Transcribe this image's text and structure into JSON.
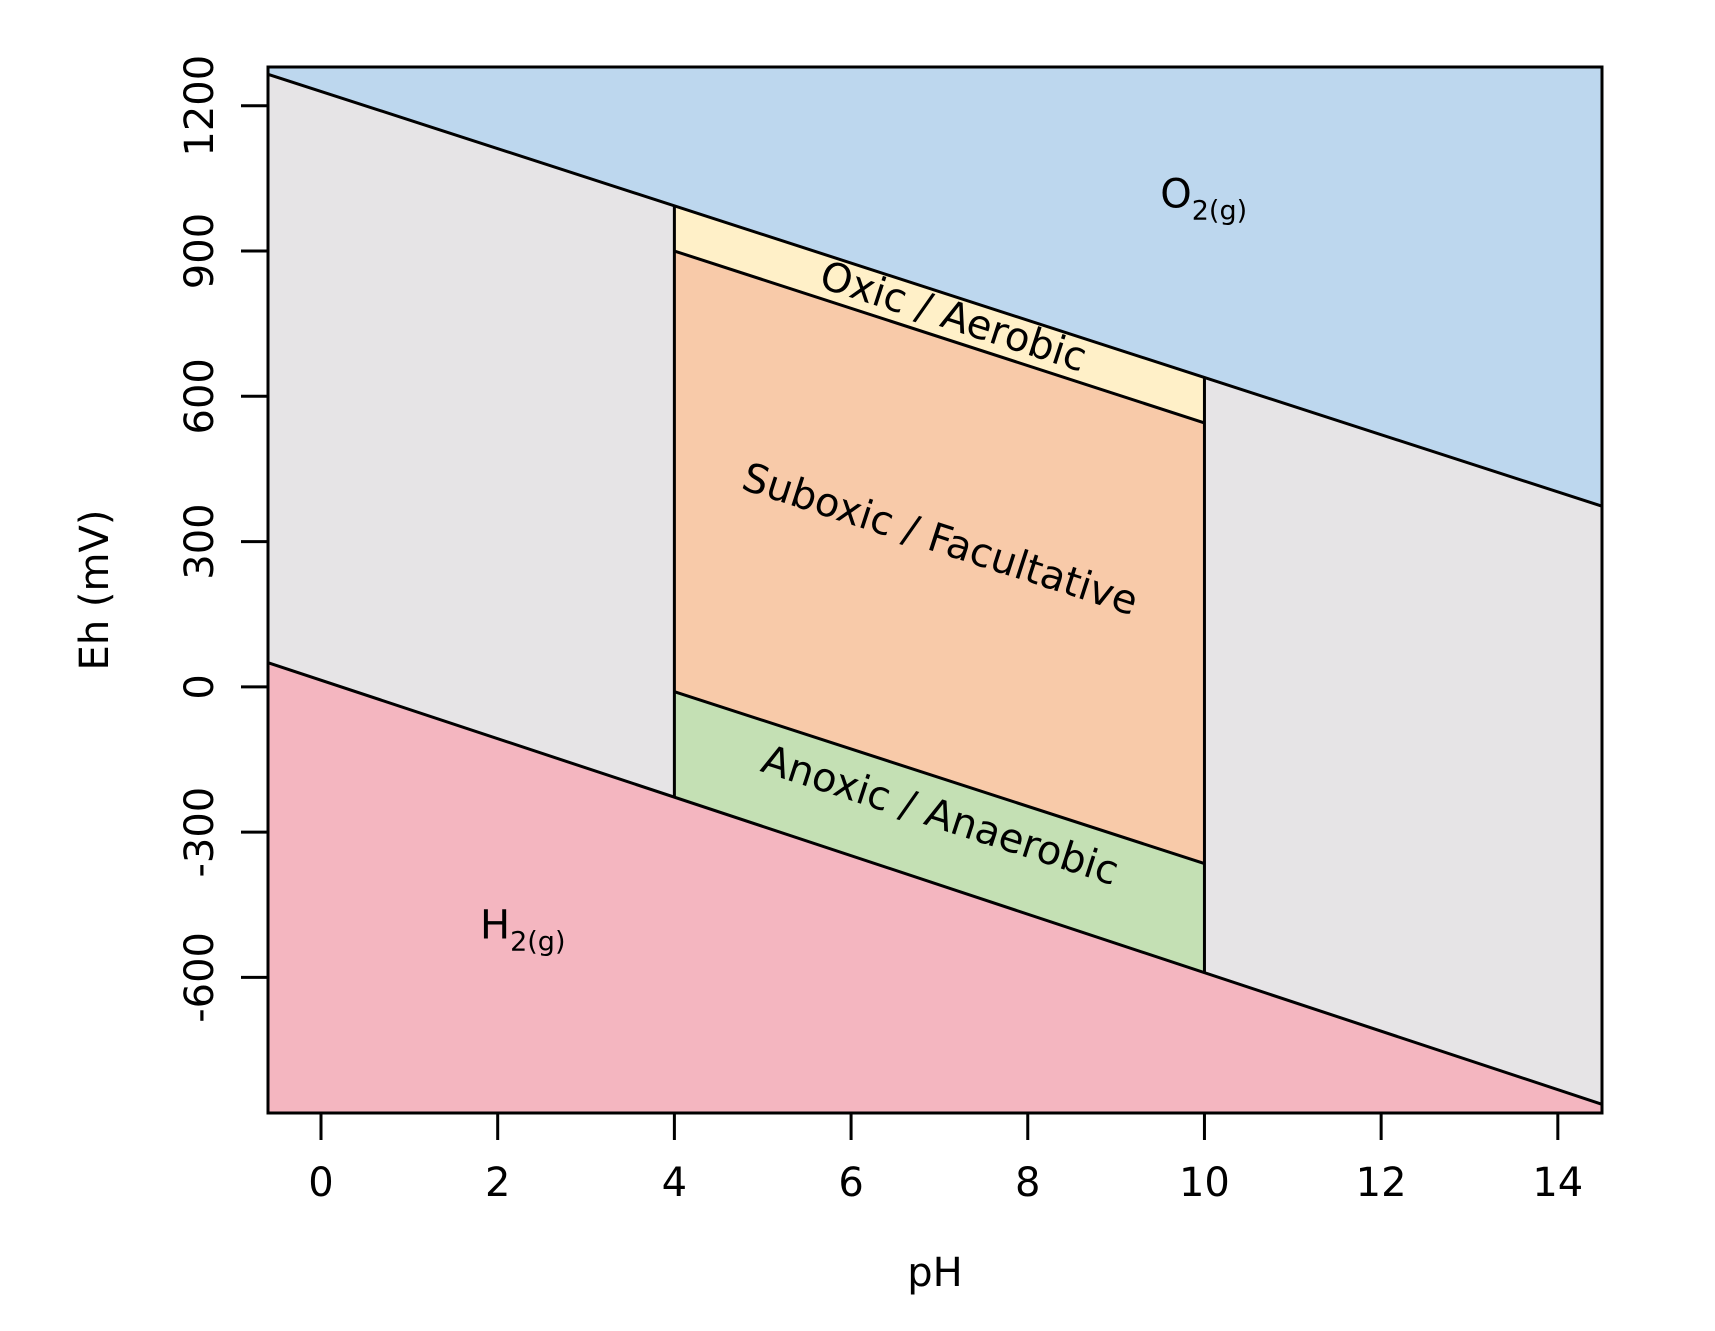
{
  "chart_data": {
    "type": "area",
    "title": "",
    "xlabel": "pH",
    "ylabel": "Eh (mV)",
    "xlim": [
      -0.6,
      14.5
    ],
    "ylim": [
      -880,
      1280
    ],
    "x_ticks": [
      {
        "value": 0,
        "label": "0"
      },
      {
        "value": 2,
        "label": "2"
      },
      {
        "value": 4,
        "label": "4"
      },
      {
        "value": 6,
        "label": "6"
      },
      {
        "value": 8,
        "label": "8"
      },
      {
        "value": 10,
        "label": "10"
      },
      {
        "value": 12,
        "label": "12"
      },
      {
        "value": 14,
        "label": "14"
      }
    ],
    "y_ticks": [
      {
        "value": -600,
        "label": "-600"
      },
      {
        "value": -300,
        "label": "-300"
      },
      {
        "value": 0,
        "label": "0"
      },
      {
        "value": 300,
        "label": "300"
      },
      {
        "value": 600,
        "label": "600"
      },
      {
        "value": 900,
        "label": "900"
      },
      {
        "value": 1200,
        "label": "1200"
      }
    ],
    "grid": false,
    "boundaries": {
      "o2_upper_line": [
        [
          -0.6,
          1265
        ],
        [
          14.5,
          373
        ]
      ],
      "h2_lower_line": [
        [
          -0.6,
          50
        ],
        [
          14.5,
          -862
        ]
      ],
      "oxic_suboxic_line": [
        [
          4,
          900
        ],
        [
          10,
          545
        ]
      ],
      "suboxic_anoxic_line": [
        [
          4,
          -10
        ],
        [
          10,
          -365
        ]
      ],
      "ph_bounds": [
        4,
        10
      ]
    },
    "regions": [
      {
        "id": "o2",
        "label_main": "O",
        "label_sub": "2(g)",
        "color": "#bdd7ee",
        "label_at": [
          9.5,
          990
        ]
      },
      {
        "id": "h2",
        "label_main": "H",
        "label_sub": "2(g)",
        "color": "#f4b6c0",
        "label_at": [
          1.8,
          -520
        ]
      },
      {
        "id": "water",
        "color": "#e6e4e6"
      },
      {
        "id": "oxic",
        "label": "Oxic / Aerobic",
        "color": "#fff0c8",
        "label_at": [
          7.15,
          760
        ]
      },
      {
        "id": "suboxic",
        "label": "Suboxic / Facultative",
        "color": "#f8caa9",
        "label_at": [
          7.0,
          300
        ]
      },
      {
        "id": "anoxic",
        "label": "Anoxic / Anaerobic",
        "color": "#c4e0b4",
        "label_at": [
          7.0,
          -270
        ]
      }
    ]
  }
}
